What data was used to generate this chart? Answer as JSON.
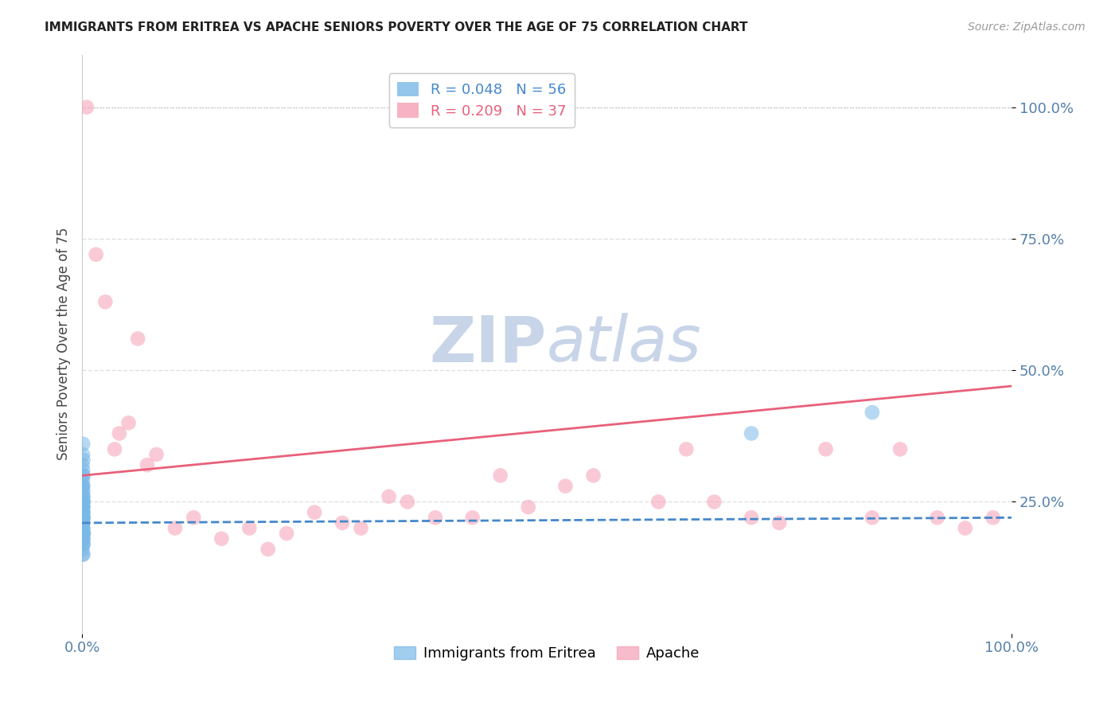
{
  "title": "IMMIGRANTS FROM ERITREA VS APACHE SENIORS POVERTY OVER THE AGE OF 75 CORRELATION CHART",
  "source": "Source: ZipAtlas.com",
  "ylabel": "Seniors Poverty Over the Age of 75",
  "xlim": [
    0,
    100
  ],
  "ylim": [
    0,
    110
  ],
  "yticks": [
    25,
    50,
    75,
    100
  ],
  "ytick_labels": [
    "25.0%",
    "50.0%",
    "75.0%",
    "100.0%"
  ],
  "xtick_left": "0.0%",
  "xtick_right": "100.0%",
  "legend_r1": "R = 0.048",
  "legend_n1": "N = 56",
  "legend_r2": "R = 0.209",
  "legend_n2": "N = 37",
  "color_blue": "#7ab8e8",
  "color_pink": "#f5a0b5",
  "color_trend_blue": "#4488cc",
  "color_trend_pink": "#e8607a",
  "watermark_zip": "ZIP",
  "watermark_atlas": "atlas",
  "watermark_color": "#c8d4e8",
  "blue_x": [
    0.05,
    0.08,
    0.1,
    0.12,
    0.15,
    0.03,
    0.07,
    0.09,
    0.11,
    0.13,
    0.04,
    0.06,
    0.08,
    0.1,
    0.14,
    0.02,
    0.05,
    0.07,
    0.09,
    0.12,
    0.03,
    0.06,
    0.08,
    0.11,
    0.13,
    0.04,
    0.07,
    0.09,
    0.12,
    0.15,
    0.02,
    0.05,
    0.08,
    0.1,
    0.13,
    0.03,
    0.06,
    0.09,
    0.11,
    0.14,
    0.04,
    0.07,
    0.1,
    0.12,
    0.15,
    0.05,
    0.08,
    0.11,
    0.13,
    0.16,
    0.02,
    0.06,
    0.09,
    0.12,
    72.0,
    85.0
  ],
  "blue_y": [
    32,
    34,
    36,
    30,
    22,
    28,
    26,
    24,
    20,
    18,
    15,
    22,
    25,
    23,
    19,
    21,
    27,
    29,
    31,
    33,
    17,
    20,
    24,
    28,
    26,
    22,
    19,
    21,
    23,
    25,
    18,
    16,
    22,
    20,
    24,
    26,
    28,
    30,
    18,
    22,
    20,
    24,
    19,
    21,
    17,
    25,
    23,
    27,
    15,
    19,
    21,
    23,
    25,
    17,
    38,
    42
  ],
  "pink_x": [
    0.5,
    1.5,
    2.5,
    3.5,
    5.0,
    7.0,
    4.0,
    8.0,
    6.0,
    12.0,
    15.0,
    18.0,
    20.0,
    25.0,
    28.0,
    30.0,
    35.0,
    38.0,
    42.0,
    45.0,
    48.0,
    52.0,
    62.0,
    65.0,
    72.0,
    75.0,
    80.0,
    88.0,
    92.0,
    95.0,
    98.0,
    10.0,
    22.0,
    33.0,
    55.0,
    68.0,
    85.0
  ],
  "pink_y": [
    100,
    72,
    63,
    35,
    40,
    32,
    38,
    34,
    56,
    22,
    18,
    20,
    16,
    23,
    21,
    20,
    25,
    22,
    22,
    30,
    24,
    28,
    25,
    35,
    22,
    21,
    35,
    35,
    22,
    20,
    22,
    20,
    19,
    26,
    30,
    25,
    22
  ],
  "blue_trend_x": [
    0,
    100
  ],
  "blue_trend_y": [
    21,
    22
  ],
  "pink_trend_x": [
    0,
    100
  ],
  "pink_trend_y": [
    30,
    47
  ],
  "top_dotted_y": 100,
  "grid_color": "#dddddd",
  "spine_color": "#cccccc",
  "tick_color": "#5580aa",
  "ylabel_color": "#444444",
  "title_color": "#222222",
  "source_color": "#999999"
}
